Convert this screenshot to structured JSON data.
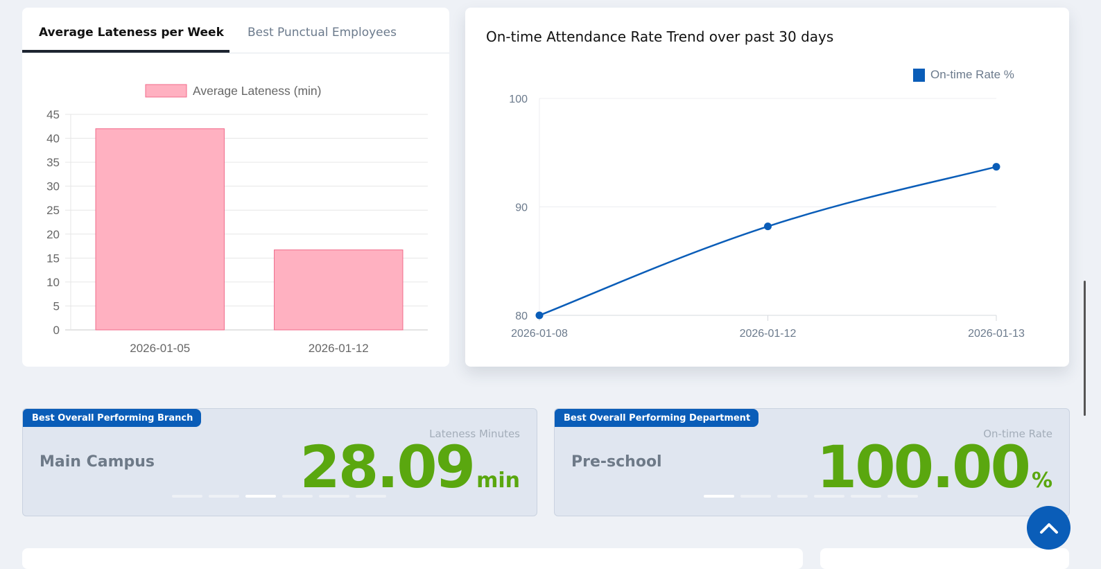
{
  "tabs": [
    {
      "label": "Average Lateness per Week",
      "active": true
    },
    {
      "label": "Best Punctual Employees",
      "active": false
    }
  ],
  "bar_chart": {
    "chart_data": {
      "type": "bar",
      "categories": [
        "2026-01-05",
        "2026-01-12"
      ],
      "series": [
        {
          "name": "Average Lateness (min)",
          "values": [
            42,
            16.7
          ]
        }
      ],
      "ylim": [
        0,
        45
      ],
      "yticks": [
        0,
        5,
        10,
        15,
        20,
        25,
        30,
        35,
        40,
        45
      ],
      "grid": true,
      "legend": "top-center",
      "color_fill": "#ffb1c1",
      "color_border": "#f06a8a"
    }
  },
  "line_chart": {
    "title": "On-time Attendance Rate Trend over past 30 days",
    "chart_data": {
      "type": "line",
      "x": [
        "2026-01-08",
        "2026-01-12",
        "2026-01-13"
      ],
      "series": [
        {
          "name": "On-time Rate %",
          "values": [
            80,
            88.2,
            93.7
          ]
        }
      ],
      "ylim": [
        80,
        100
      ],
      "yticks": [
        80,
        90,
        100
      ],
      "grid": true,
      "legend": "top-right",
      "color": "#0a5db8"
    }
  },
  "kpis": {
    "branch": {
      "badge": "Best Overall Performing Branch",
      "name": "Main Campus",
      "caption": "Lateness Minutes",
      "value": "28.09",
      "unit": "min",
      "active_slide": 3,
      "slide_count": 6
    },
    "department": {
      "badge": "Best Overall Performing Department",
      "name": "Pre-school",
      "caption": "On-time Rate",
      "value": "100.00",
      "unit": "%",
      "active_slide": 1,
      "slide_count": 6
    }
  },
  "colors": {
    "accent": "#0a5db8",
    "kpi_value": "#5aa70f"
  },
  "scroll_top_icon": "chevron-up-icon"
}
